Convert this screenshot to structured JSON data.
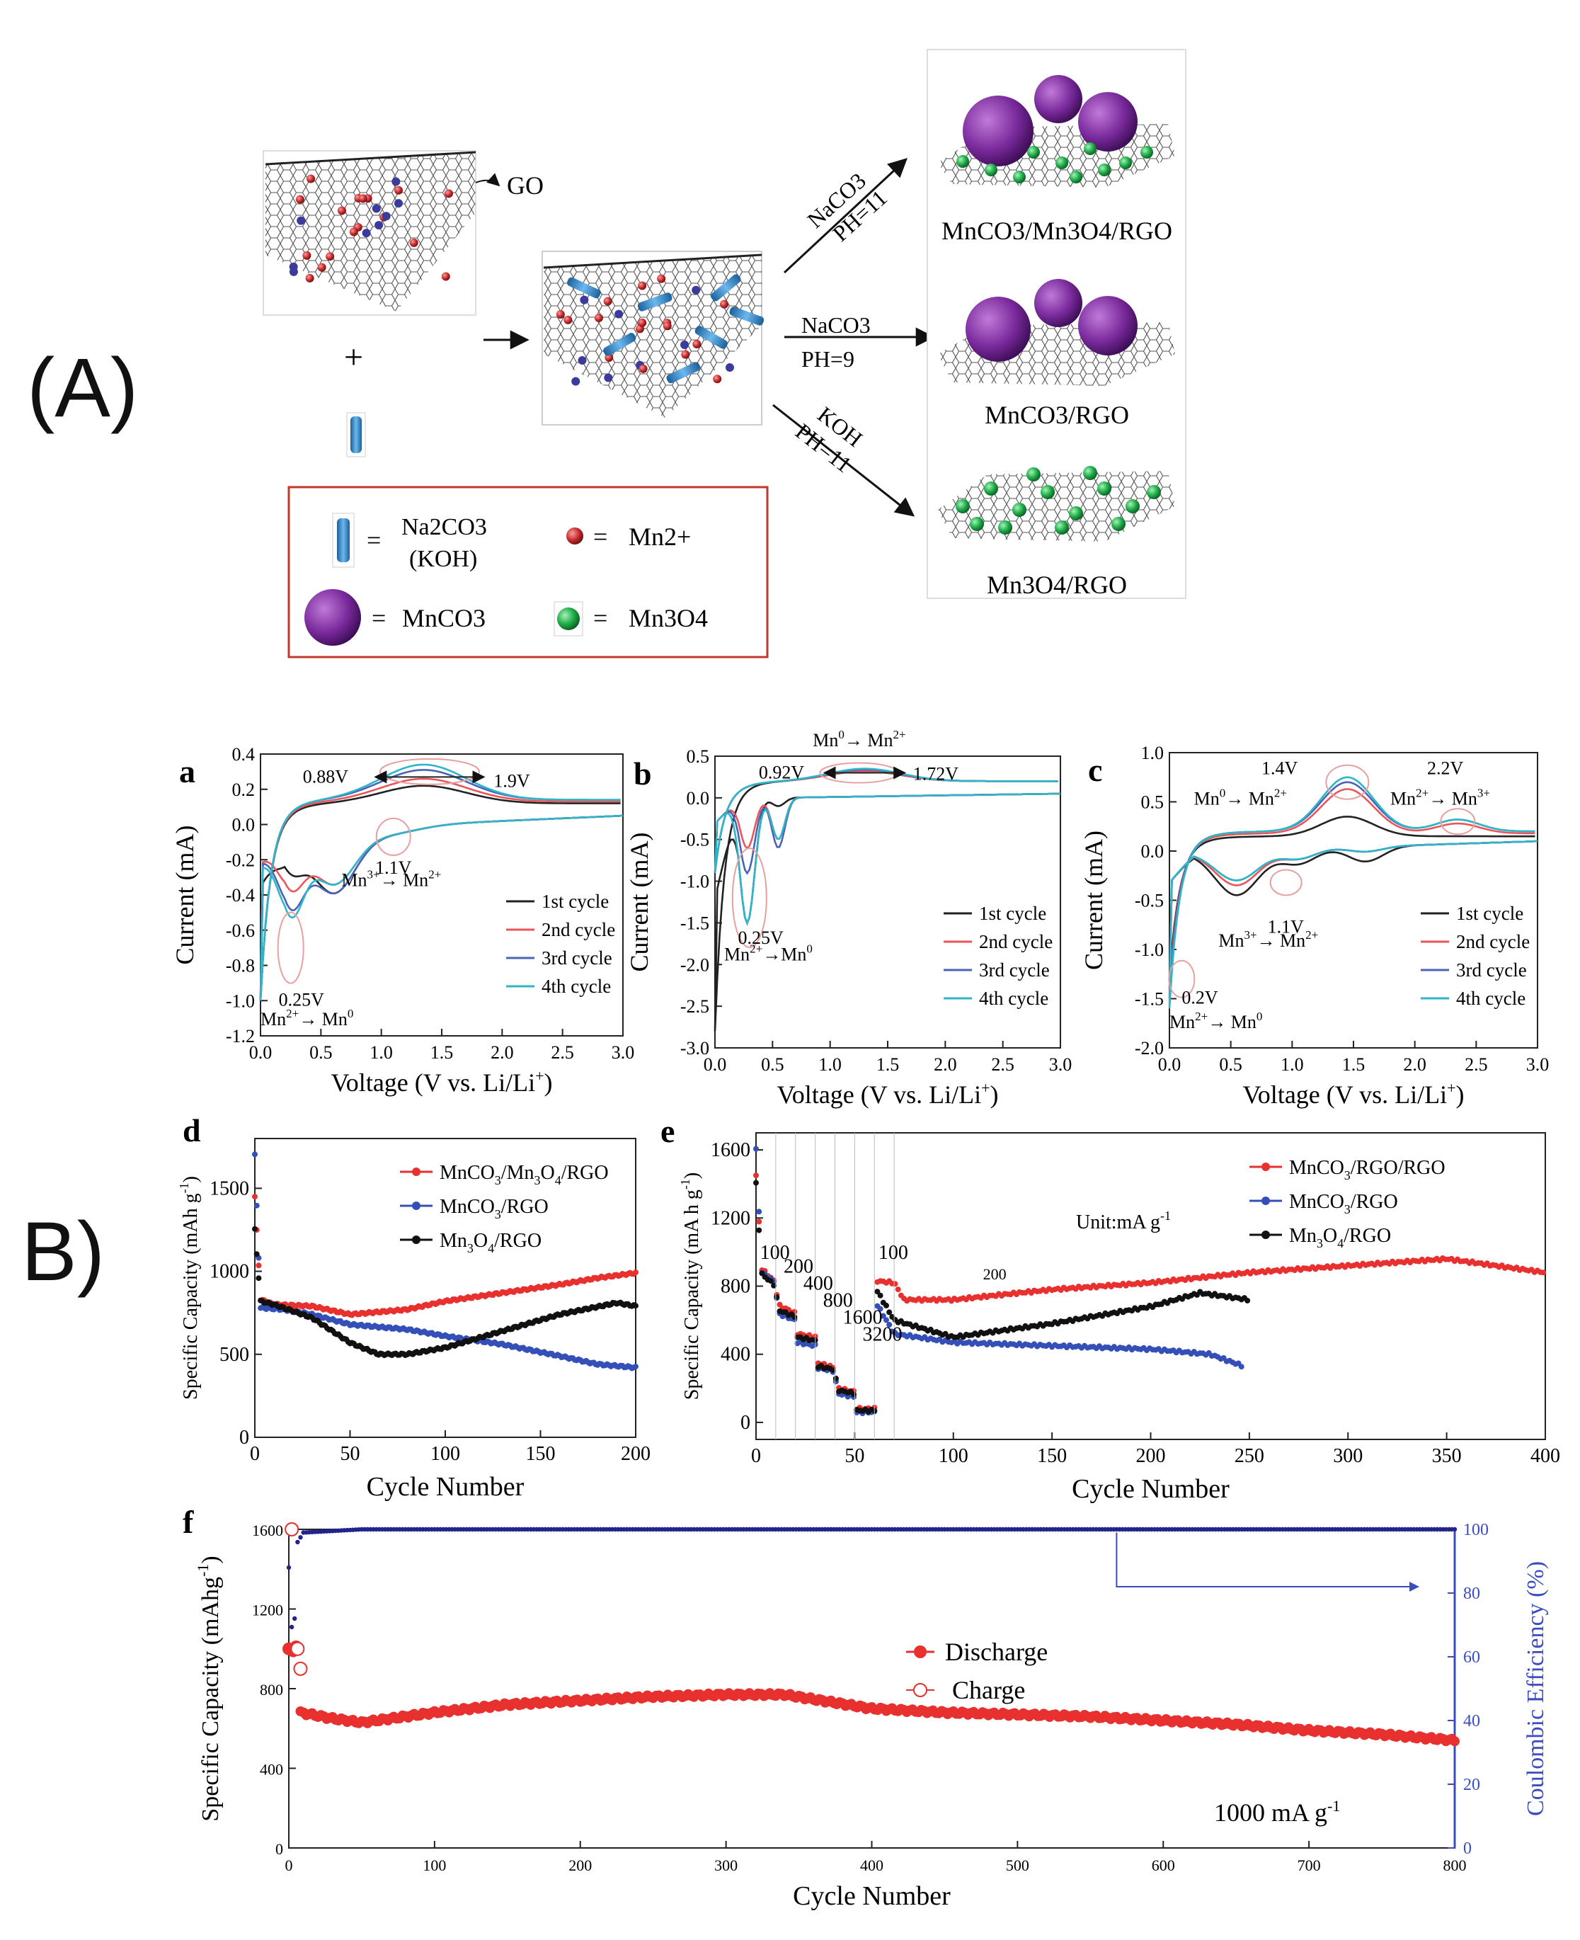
{
  "section_labels": {
    "A": "(A)",
    "B": "B)"
  },
  "scheme": {
    "go_label": "GO",
    "plus": "+",
    "arrows": [
      {
        "reagent": "NaCO3",
        "ph": "PH=11",
        "product": "MnCO3/Mn3O4/RGO"
      },
      {
        "reagent": "NaCO3",
        "ph": "PH=9",
        "product": "MnCO3/RGO"
      },
      {
        "reagent": "KOH",
        "ph": "PH=11",
        "product": "Mn3O4/RGO"
      }
    ],
    "legend": [
      {
        "symbol": "=",
        "text": "Na2CO3",
        "text2": "(KOH)"
      },
      {
        "symbol": "=",
        "text": "Mn2+"
      },
      {
        "symbol": "=",
        "text": "MnCO3"
      },
      {
        "symbol": "=",
        "text": "Mn3O4"
      }
    ],
    "colors": {
      "mnco3": "#7a2a9c",
      "mn3o4": "#1fae4a",
      "mn2": "#c2282a",
      "na2co3": "#3a8fd0",
      "legend_border": "#c0392b"
    }
  },
  "cycle_colors": [
    "#222222",
    "#e8565a",
    "#4a63b8",
    "#2fb5c8"
  ],
  "chart_data": [
    {
      "id": "a",
      "type": "line",
      "panel_label": "a",
      "xlabel": "Voltage (V vs. Li/Li",
      "xlabel_sup": "+",
      "xlabel_end": ")",
      "ylabel": "Current (mA)",
      "xlim": [
        0,
        3.0
      ],
      "ylim": [
        -1.2,
        0.4
      ],
      "xticks": [
        "0.0",
        "0.5",
        "1.0",
        "1.5",
        "2.0",
        "2.5",
        "3.0"
      ],
      "yticks": [
        "0.4",
        "0.2",
        "0.0",
        "-0.2",
        "-0.4",
        "-0.6",
        "-0.8",
        "-1.0",
        "-1.2"
      ],
      "legend": [
        "1st cycle",
        "2nd cycle",
        "3rd cycle",
        "4th cycle"
      ],
      "annotations": {
        "p1": "0.88V",
        "p2": "1.9V",
        "p3": "1.1V",
        "p3b": "Mn",
        "p3c": "→ Mn",
        "p4": "0.25V",
        "p4b": "Mn",
        "p4c": "→ Mn"
      }
    },
    {
      "id": "b",
      "type": "line",
      "panel_label": "b",
      "xlabel": "Voltage (V vs. Li/Li",
      "xlabel_sup": "+",
      "xlabel_end": ")",
      "ylabel": "Current (mA)",
      "xlim": [
        0,
        3.0
      ],
      "ylim": [
        -3.0,
        0.5
      ],
      "xticks": [
        "0.0",
        "0.5",
        "1.0",
        "1.5",
        "2.0",
        "2.5",
        "3.0"
      ],
      "yticks": [
        "0.5",
        "0.0",
        "-0.5",
        "-1.0",
        "-1.5",
        "-2.0",
        "-2.5",
        "-3.0"
      ],
      "legend": [
        "1st cycle",
        "2nd cycle",
        "3rd cycle",
        "4th cycle"
      ],
      "annotations": {
        "p1": "0.92V",
        "p2": "1.72V",
        "p3": "Mn",
        "p3c": "→ Mn",
        "p4": "0.25V",
        "p4b": "Mn",
        "p4c": "→Mn"
      }
    },
    {
      "id": "c",
      "type": "line",
      "panel_label": "c",
      "xlabel": "Voltage (V vs. Li/Li",
      "xlabel_sup": "+",
      "xlabel_end": ")",
      "ylabel": "Current (mA)",
      "xlim": [
        0,
        3.0
      ],
      "ylim": [
        -2.0,
        1.0
      ],
      "xticks": [
        "0.0",
        "0.5",
        "1.0",
        "1.5",
        "2.0",
        "2.5",
        "3.0"
      ],
      "yticks": [
        "1.0",
        "0.5",
        "0.0",
        "-0.5",
        "-1.0",
        "-1.5",
        "-2.0"
      ],
      "legend": [
        "1st cycle",
        "2nd cycle",
        "3rd cycle",
        "4th cycle"
      ],
      "annotations": {
        "p1": "1.4V",
        "p1b": "Mn",
        "p1c": "→ Mn",
        "p2": "2.2V",
        "p2b": "Mn",
        "p2c": "→ Mn",
        "p3": "1.1V",
        "p3b": "Mn",
        "p3c": "→ Mn",
        "p4": "0.2V",
        "p4b": "Mn",
        "p4c": "→ Mn"
      }
    },
    {
      "id": "d",
      "type": "line",
      "panel_label": "d",
      "xlabel": "Cycle Number",
      "ylabel": "Specific Capacity (mAh g",
      "xlim": [
        0,
        200
      ],
      "ylim": [
        0,
        1800
      ],
      "xticks": [
        "0",
        "50",
        "100",
        "150",
        "200"
      ],
      "yticks": [
        "0",
        "500",
        "1000",
        "1500"
      ],
      "series": [
        {
          "name": "MnCO3/Mn3O4/RGO",
          "color": "#e8302f",
          "points": [
            [
              0,
              1450
            ],
            [
              3,
              830
            ],
            [
              10,
              800
            ],
            [
              30,
              790
            ],
            [
              50,
              740
            ],
            [
              80,
              770
            ],
            [
              100,
              820
            ],
            [
              130,
              870
            ],
            [
              160,
              920
            ],
            [
              180,
              960
            ],
            [
              200,
              990
            ]
          ]
        },
        {
          "name": "MnCO3/RGO",
          "color": "#3450b8",
          "points": [
            [
              0,
              1700
            ],
            [
              3,
              780
            ],
            [
              15,
              770
            ],
            [
              30,
              740
            ],
            [
              50,
              680
            ],
            [
              80,
              650
            ],
            [
              100,
              610
            ],
            [
              130,
              560
            ],
            [
              160,
              490
            ],
            [
              180,
              440
            ],
            [
              200,
              420
            ]
          ]
        },
        {
          "name": "Mn3O4/RGO",
          "color": "#111111",
          "points": [
            [
              0,
              1250
            ],
            [
              3,
              820
            ],
            [
              10,
              800
            ],
            [
              30,
              720
            ],
            [
              50,
              570
            ],
            [
              65,
              500
            ],
            [
              80,
              500
            ],
            [
              100,
              540
            ],
            [
              130,
              640
            ],
            [
              160,
              740
            ],
            [
              190,
              810
            ],
            [
              200,
              790
            ]
          ]
        }
      ]
    },
    {
      "id": "e",
      "type": "line",
      "panel_label": "e",
      "xlabel": "Cycle Number",
      "ylabel": "Specific Capacity (mA h g",
      "xlim": [
        0,
        400
      ],
      "ylim": [
        -100,
        1700
      ],
      "xticks": [
        "0",
        "50",
        "100",
        "150",
        "200",
        "250",
        "300",
        "350",
        "400"
      ],
      "yticks": [
        "0",
        "400",
        "800",
        "1200",
        "1600"
      ],
      "unit_label": "Unit:mA g",
      "rate_labels": [
        "100",
        "200",
        "400",
        "800",
        "1600",
        "3200",
        "100",
        "200"
      ],
      "series": [
        {
          "name": "MnCO3/RGO/RGO",
          "color": "#e8302f",
          "points": [
            [
              0,
              1450
            ],
            [
              3,
              900
            ],
            [
              10,
              820
            ],
            [
              11,
              690
            ],
            [
              20,
              640
            ],
            [
              21,
              520
            ],
            [
              30,
              500
            ],
            [
              31,
              350
            ],
            [
              40,
              320
            ],
            [
              41,
              200
            ],
            [
              50,
              180
            ],
            [
              51,
              80
            ],
            [
              60,
              80
            ],
            [
              61,
              830
            ],
            [
              70,
              820
            ],
            [
              75,
              720
            ],
            [
              100,
              720
            ],
            [
              150,
              780
            ],
            [
              200,
              820
            ],
            [
              250,
              880
            ],
            [
              300,
              920
            ],
            [
              350,
              960
            ],
            [
              400,
              880
            ]
          ]
        },
        {
          "name": "MnCO3/RGO",
          "color": "#3450b8",
          "points": [
            [
              0,
              1600
            ],
            [
              3,
              880
            ],
            [
              10,
              820
            ],
            [
              11,
              640
            ],
            [
              20,
              600
            ],
            [
              21,
              470
            ],
            [
              30,
              450
            ],
            [
              31,
              320
            ],
            [
              40,
              300
            ],
            [
              41,
              170
            ],
            [
              50,
              150
            ],
            [
              51,
              60
            ],
            [
              60,
              60
            ],
            [
              61,
              700
            ],
            [
              70,
              520
            ],
            [
              100,
              470
            ],
            [
              150,
              450
            ],
            [
              200,
              430
            ],
            [
              230,
              400
            ],
            [
              247,
              330
            ]
          ]
        },
        {
          "name": "Mn3O4/RGO",
          "color": "#111111",
          "points": [
            [
              0,
              1400
            ],
            [
              3,
              870
            ],
            [
              10,
              800
            ],
            [
              11,
              660
            ],
            [
              20,
              620
            ],
            [
              21,
              500
            ],
            [
              30,
              480
            ],
            [
              31,
              330
            ],
            [
              40,
              310
            ],
            [
              41,
              190
            ],
            [
              50,
              170
            ],
            [
              51,
              70
            ],
            [
              60,
              70
            ],
            [
              61,
              780
            ],
            [
              70,
              600
            ],
            [
              100,
              500
            ],
            [
              150,
              580
            ],
            [
              200,
              680
            ],
            [
              225,
              760
            ],
            [
              250,
              720
            ]
          ]
        }
      ]
    },
    {
      "id": "f",
      "type": "scatter",
      "panel_label": "f",
      "xlabel": "Cycle Number",
      "ylabel": "Specific Capacity (mAhg",
      "y2label": "Coulombic Efficiency (%)",
      "xlim": [
        0,
        800
      ],
      "ylim": [
        0,
        1600
      ],
      "y2lim": [
        0,
        100
      ],
      "xticks": [
        "0",
        "100",
        "200",
        "300",
        "400",
        "500",
        "600",
        "700",
        "800"
      ],
      "yticks": [
        "0",
        "400",
        "800",
        "1200",
        "1600"
      ],
      "y2ticks": [
        "0",
        "20",
        "40",
        "60",
        "80",
        "100"
      ],
      "legend": [
        "Discharge",
        "Charge"
      ],
      "rate_text": "1000 mA g",
      "series": [
        {
          "name": "Discharge",
          "color": "#e8302f",
          "points": [
            [
              0,
              1000
            ],
            [
              5,
              1000
            ],
            [
              8,
              680
            ],
            [
              30,
              650
            ],
            [
              50,
              630
            ],
            [
              100,
              680
            ],
            [
              150,
              720
            ],
            [
              200,
              740
            ],
            [
              250,
              760
            ],
            [
              300,
              770
            ],
            [
              340,
              770
            ],
            [
              400,
              700
            ],
            [
              450,
              680
            ],
            [
              500,
              670
            ],
            [
              550,
              660
            ],
            [
              600,
              640
            ],
            [
              650,
              620
            ],
            [
              700,
              590
            ],
            [
              750,
              570
            ],
            [
              800,
              540
            ]
          ]
        },
        {
          "name": "Coulombic Efficiency",
          "color": "#23238c",
          "points": [
            [
              0,
              88
            ],
            [
              3,
              60
            ],
            [
              6,
              96
            ],
            [
              10,
              99
            ],
            [
              50,
              100
            ],
            [
              200,
              100
            ],
            [
              400,
              100
            ],
            [
              600,
              100
            ],
            [
              800,
              100
            ]
          ]
        }
      ]
    }
  ]
}
